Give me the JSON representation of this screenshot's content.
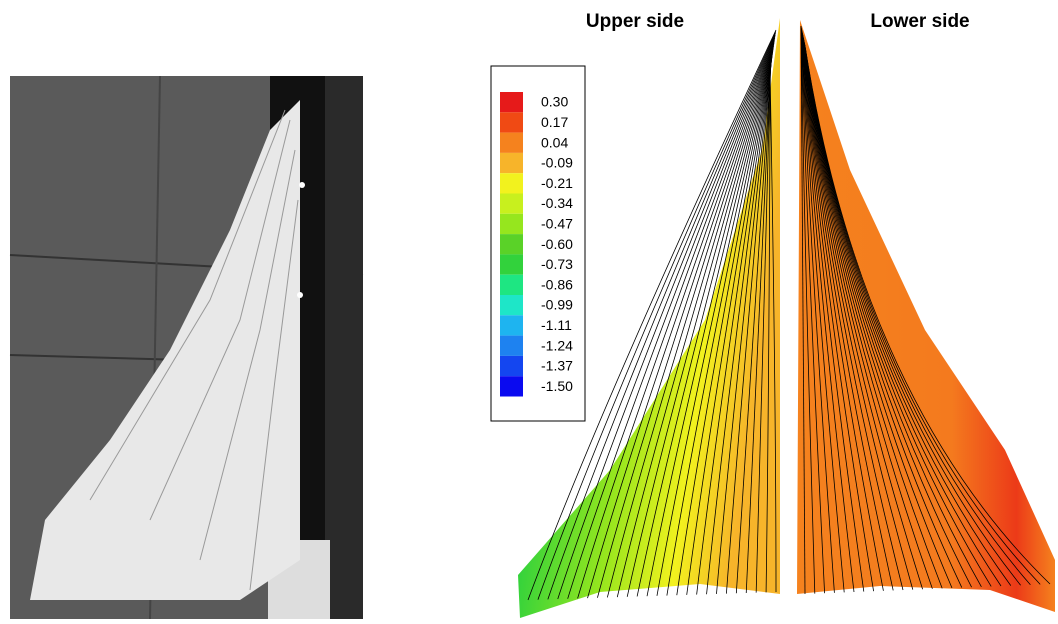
{
  "panels": {
    "upper_title": "Upper side",
    "lower_title": "Lower side"
  },
  "legend": {
    "levels": [
      {
        "label": "0.30",
        "color": "#e61a1a"
      },
      {
        "label": "0.17",
        "color": "#f04a14"
      },
      {
        "label": "0.04",
        "color": "#f5821e"
      },
      {
        "label": "-0.09",
        "color": "#f7b42a"
      },
      {
        "label": "-0.21",
        "color": "#f2f21e"
      },
      {
        "label": "-0.34",
        "color": "#c8f01e"
      },
      {
        "label": "-0.47",
        "color": "#96e61e"
      },
      {
        "label": "-0.60",
        "color": "#5ad228"
      },
      {
        "label": "-0.73",
        "color": "#32d23c"
      },
      {
        "label": "-0.86",
        "color": "#1ee682"
      },
      {
        "label": "-0.99",
        "color": "#1ee6c8"
      },
      {
        "label": "-1.11",
        "color": "#1eb4f0"
      },
      {
        "label": "-1.24",
        "color": "#1e82f0"
      },
      {
        "label": "-1.37",
        "color": "#1446f0"
      },
      {
        "label": "-1.50",
        "color": "#0a0af0"
      }
    ]
  }
}
